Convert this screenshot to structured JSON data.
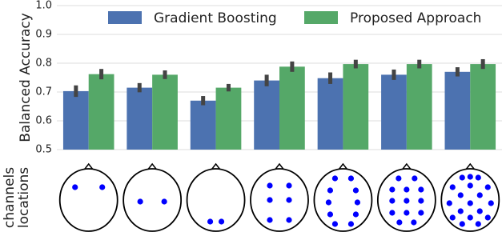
{
  "chart_data": {
    "type": "bar",
    "y_label": "Balanced Accuracy",
    "side_label": [
      "channels",
      "locations"
    ],
    "categories": [
      null,
      null,
      null,
      null,
      null,
      null,
      null
    ],
    "series": [
      {
        "name": "Gradient Boosting",
        "color": "#4c72b0",
        "values": [
          0.703,
          0.715,
          0.67,
          0.74,
          0.748,
          0.76,
          0.77
        ],
        "errors": [
          0.02,
          0.016,
          0.016,
          0.02,
          0.02,
          0.018,
          0.016
        ]
      },
      {
        "name": "Proposed Approach",
        "color": "#55a868",
        "values": [
          0.762,
          0.76,
          0.715,
          0.788,
          0.797,
          0.797,
          0.797
        ],
        "errors": [
          0.018,
          0.015,
          0.013,
          0.018,
          0.015,
          0.015,
          0.017
        ]
      }
    ],
    "ylim": [
      0.5,
      1
    ],
    "yticks": [
      0.5,
      0.6,
      0.7,
      0.8,
      0.9,
      {
        "value": 1,
        "label": "1.0"
      }
    ],
    "grid": true,
    "legend": "upper center"
  }
}
